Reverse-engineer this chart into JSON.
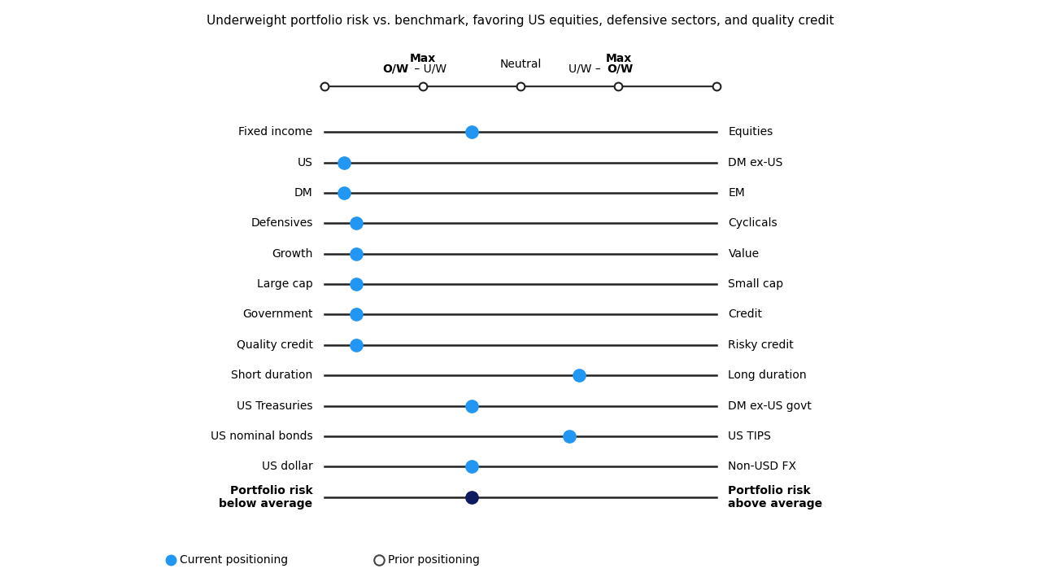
{
  "title": "Underweight portfolio risk vs. benchmark, favoring US equities, defensive sectors, and quality credit",
  "title_fontsize": 11,
  "scale_min": 0,
  "scale_max": 10,
  "rows": [
    {
      "left": "Fixed income",
      "right": "Equities",
      "current": 3.75,
      "bold": false
    },
    {
      "left": "US",
      "right": "DM ex-US",
      "current": 0.5,
      "bold": false
    },
    {
      "left": "DM",
      "right": "EM",
      "current": 0.5,
      "bold": false
    },
    {
      "left": "Defensives",
      "right": "Cyclicals",
      "current": 0.8,
      "bold": false
    },
    {
      "left": "Growth",
      "right": "Value",
      "current": 0.8,
      "bold": false
    },
    {
      "left": "Large cap",
      "right": "Small cap",
      "current": 0.8,
      "bold": false
    },
    {
      "left": "Government",
      "right": "Credit",
      "current": 0.8,
      "bold": false
    },
    {
      "left": "Quality credit",
      "right": "Risky credit",
      "current": 0.8,
      "bold": false
    },
    {
      "left": "Short duration",
      "right": "Long duration",
      "current": 6.5,
      "bold": false
    },
    {
      "left": "US Treasuries",
      "right": "DM ex-US govt",
      "current": 3.75,
      "bold": false
    },
    {
      "left": "US nominal bonds",
      "right": "US TIPS",
      "current": 6.25,
      "bold": false
    },
    {
      "left": "US dollar",
      "right": "Non-USD FX",
      "current": 3.75,
      "bold": false
    },
    {
      "left": "Portfolio risk\nbelow average",
      "right": "Portfolio risk\nabove average",
      "current": 3.75,
      "bold": true
    }
  ],
  "dot_color_current": "#2196F3",
  "dot_color_dark": "#0d1b5e",
  "dot_color_prior_fill": "#ffffff",
  "dot_color_prior_edge": "#444444",
  "line_color": "#222222",
  "line_width": 1.8,
  "axis_line_color": "#222222",
  "background_color": "#ffffff",
  "legend_current": "Current positioning",
  "legend_prior": "Prior positioning",
  "scale_marker_positions": [
    0,
    2.5,
    5.0,
    7.5,
    10.0
  ],
  "left_label_bold_ow": "O/W",
  "left_label_normal_uw": " – U/W",
  "right_label_normal_uw": "U/W – ",
  "right_label_bold_ow": "O/W",
  "header_max_left": "Max",
  "header_neutral": "Neutral",
  "header_max_right": "Max"
}
